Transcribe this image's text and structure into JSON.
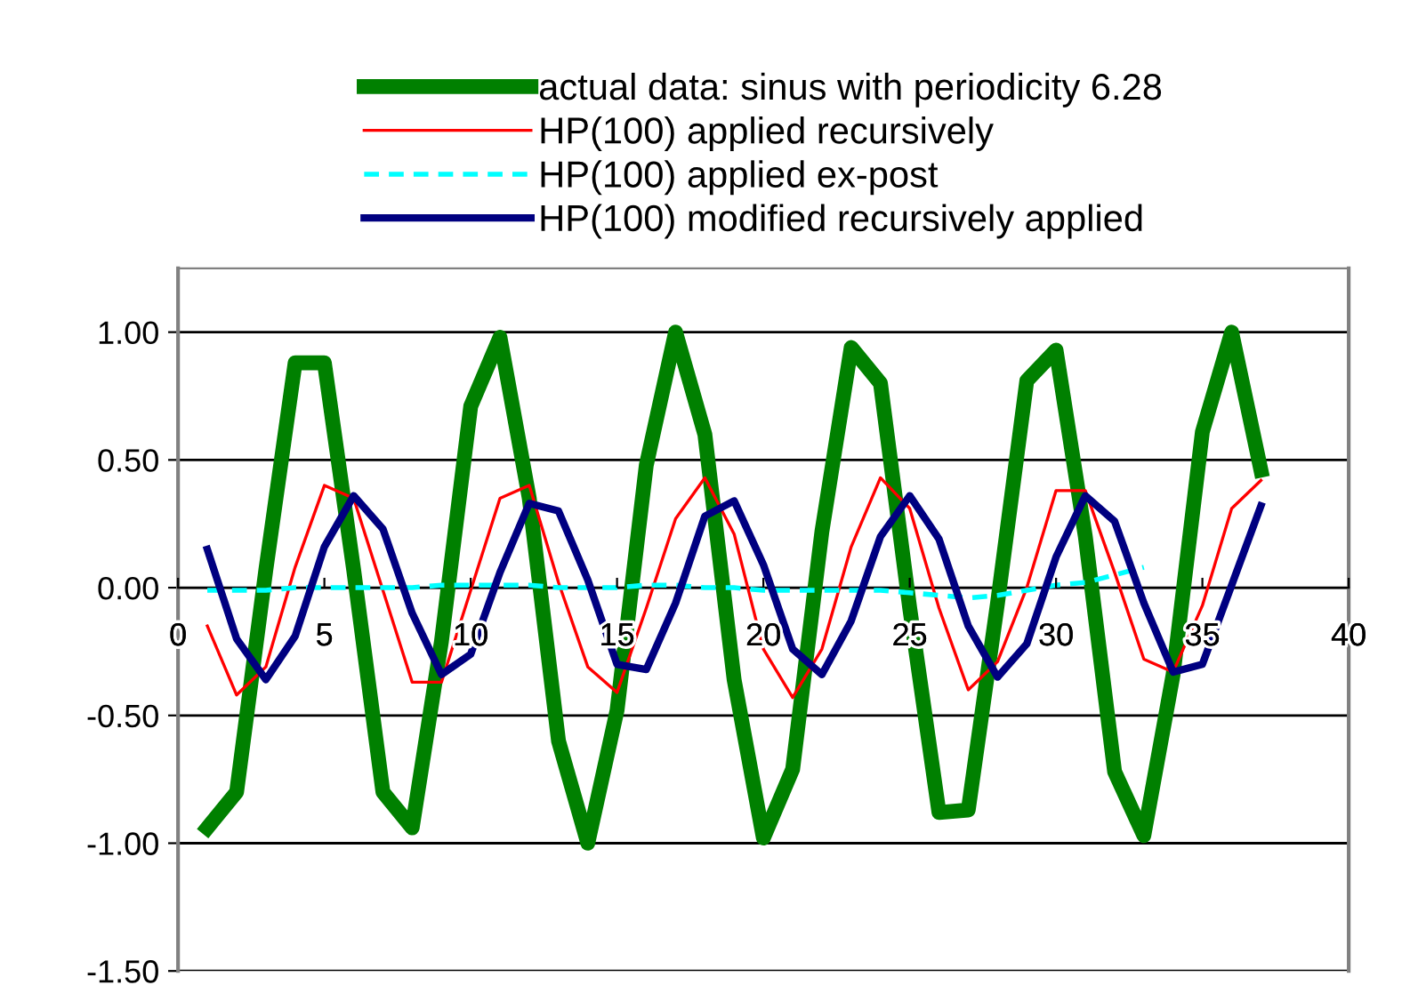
{
  "chart_data": {
    "type": "line",
    "x": [
      1,
      2,
      3,
      4,
      5,
      6,
      7,
      8,
      9,
      10,
      11,
      12,
      13,
      14,
      15,
      16,
      17,
      18,
      19,
      20,
      21,
      22,
      23,
      24,
      25,
      26,
      27,
      28,
      29,
      30,
      31,
      32,
      33,
      34,
      35,
      36,
      37
    ],
    "series": [
      {
        "name": "actual data: sinus with periodicity 6.28",
        "color": "#008000",
        "line_style": "solid",
        "values": [
          -0.94,
          -0.8,
          0.07,
          0.88,
          0.88,
          0.07,
          -0.8,
          -0.94,
          -0.21,
          0.71,
          0.98,
          0.35,
          -0.6,
          -1.0,
          -0.48,
          0.48,
          1.0,
          0.6,
          -0.36,
          -0.98,
          -0.71,
          0.22,
          0.94,
          0.8,
          -0.08,
          -0.88,
          -0.87,
          -0.06,
          0.81,
          0.93,
          0.2,
          -0.72,
          -0.97,
          -0.34,
          0.61,
          1.0,
          0.46
        ]
      },
      {
        "name": "HP(100) applied recursively",
        "color": "#ff0000",
        "line_style": "solid",
        "values": [
          -0.15,
          -0.42,
          -0.31,
          0.08,
          0.4,
          0.35,
          -0.01,
          -0.37,
          -0.37,
          -0.01,
          0.35,
          0.4,
          0.02,
          -0.31,
          -0.41,
          -0.08,
          0.27,
          0.43,
          0.21,
          -0.24,
          -0.43,
          -0.24,
          0.16,
          0.43,
          0.31,
          -0.08,
          -0.4,
          -0.29,
          0.0,
          0.38,
          0.38,
          0.06,
          -0.28,
          -0.33,
          -0.07,
          0.31,
          0.42
        ]
      },
      {
        "name": "HP(100) applied ex-post",
        "color": "#00ffff",
        "line_style": "dashed",
        "values": [
          -0.01,
          -0.01,
          -0.01,
          0.0,
          0.0,
          0.0,
          0.0,
          0.0,
          0.01,
          0.01,
          0.01,
          0.01,
          0.0,
          0.0,
          0.0,
          0.01,
          0.01,
          0.0,
          0.0,
          -0.01,
          -0.01,
          -0.01,
          -0.01,
          -0.01,
          -0.02,
          -0.03,
          -0.04,
          -0.03,
          -0.01,
          0.01,
          0.02,
          0.05,
          0.08,
          null,
          null,
          null,
          null
        ]
      },
      {
        "name": "HP(100) modified recursively applied",
        "color": "#000080",
        "line_style": "solid",
        "values": [
          0.15,
          -0.2,
          -0.36,
          -0.19,
          0.16,
          0.36,
          0.23,
          -0.1,
          -0.34,
          -0.26,
          0.06,
          0.33,
          0.3,
          0.03,
          -0.3,
          -0.32,
          -0.06,
          0.28,
          0.34,
          0.09,
          -0.24,
          -0.34,
          -0.13,
          0.2,
          0.36,
          0.19,
          -0.15,
          -0.35,
          -0.22,
          0.12,
          0.36,
          0.26,
          -0.06,
          -0.33,
          -0.3,
          0.01,
          0.32
        ]
      }
    ],
    "xlim": [
      0,
      40
    ],
    "xticks": [
      0,
      5,
      10,
      15,
      20,
      25,
      30,
      35,
      40
    ],
    "ylim": [
      -1.5,
      1.25
    ],
    "yticks": [
      {
        "value": -1.5,
        "label": "-1.50"
      },
      {
        "value": -1,
        "label": "-1.00"
      },
      {
        "value": -0.5,
        "label": "-0.50"
      },
      {
        "value": 0,
        "label": "0.00"
      },
      {
        "value": 0.5,
        "label": "0.50"
      },
      {
        "value": 1,
        "label": "1.00"
      }
    ],
    "grid": "y",
    "legend": "top",
    "marker": "none"
  }
}
